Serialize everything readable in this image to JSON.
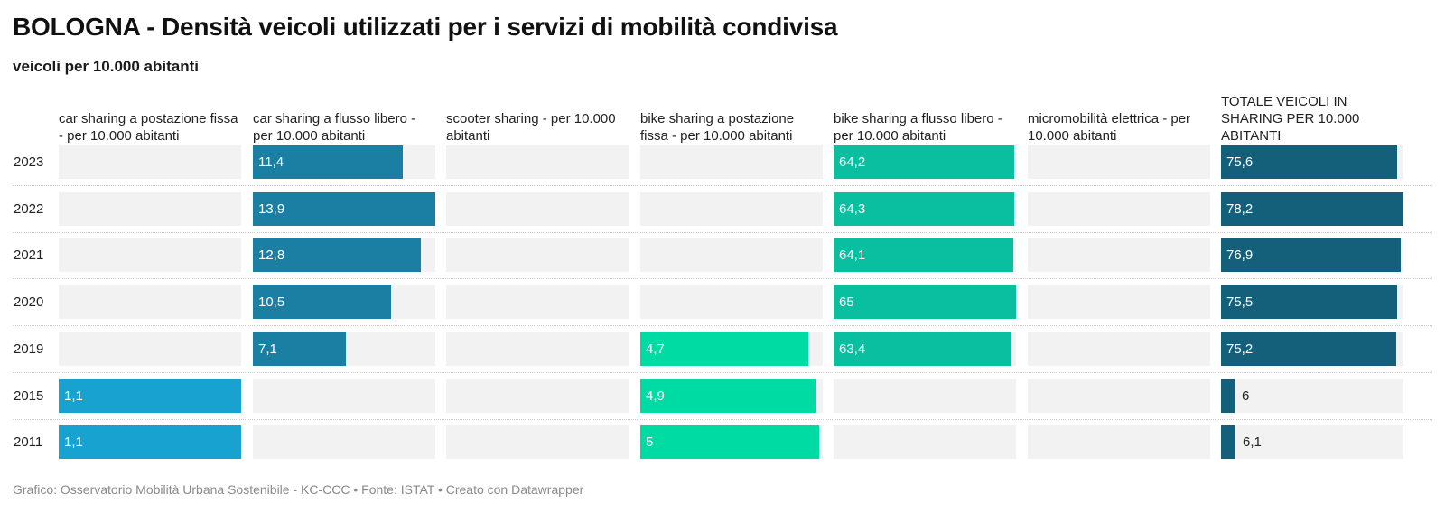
{
  "title": "BOLOGNA - Densità veicoli utilizzati per i servizi di mobilità condivisa",
  "subtitle": "veicoli per 10.000 abitanti",
  "footer": "Grafico: Osservatorio Mobilità Urbana Sostenibile - KC-CCC • Fonte: ISTAT • Creato con Datawrapper",
  "chart_data": {
    "type": "bar",
    "layout": "small-multiples-horizontal",
    "categories": [
      "2023",
      "2022",
      "2021",
      "2020",
      "2019",
      "2015",
      "2011"
    ],
    "series": [
      {
        "name": "car sharing a postazione fissa - per 10.000 abitanti",
        "color": "#17a2cf",
        "xlim": [
          0,
          1.1
        ],
        "values": [
          null,
          null,
          null,
          null,
          null,
          1.1,
          1.1
        ],
        "labels": [
          "",
          "",
          "",
          "",
          "",
          "1,1",
          "1,1"
        ]
      },
      {
        "name": "car sharing a flusso libero - per 10.000 abitanti",
        "color": "#1b7fa3",
        "xlim": [
          0,
          13.9
        ],
        "values": [
          11.4,
          13.9,
          12.8,
          10.5,
          7.1,
          null,
          null
        ],
        "labels": [
          "11,4",
          "13,9",
          "12,8",
          "10,5",
          "7,1",
          "",
          ""
        ]
      },
      {
        "name": "scooter sharing - per 10.000 abitanti",
        "color": "#1b7fa3",
        "xlim": [
          0,
          1
        ],
        "values": [
          null,
          null,
          null,
          null,
          null,
          null,
          null
        ],
        "labels": [
          "",
          "",
          "",
          "",
          "",
          "",
          ""
        ]
      },
      {
        "name": "bike sharing a postazione fissa - per 10.000 abitanti",
        "color": "#00dba3",
        "xlim": [
          0,
          5.1
        ],
        "values": [
          null,
          null,
          null,
          null,
          4.7,
          4.9,
          5
        ],
        "labels": [
          "",
          "",
          "",
          "",
          "4,7",
          "4,9",
          "5"
        ]
      },
      {
        "name": "bike sharing a flusso libero - per 10.000 abitanti",
        "color": "#0abf9f",
        "xlim": [
          0,
          65
        ],
        "values": [
          64.2,
          64.3,
          64.1,
          65,
          63.4,
          null,
          null
        ],
        "labels": [
          "64,2",
          "64,3",
          "64,1",
          "65",
          "63,4",
          "",
          ""
        ]
      },
      {
        "name": "micromobilità elettrica - per 10.000 abitanti",
        "color": "#1b7fa3",
        "xlim": [
          0,
          1
        ],
        "values": [
          null,
          null,
          null,
          null,
          null,
          null,
          null
        ],
        "labels": [
          "",
          "",
          "",
          "",
          "",
          "",
          ""
        ]
      },
      {
        "name": "TOTALE VEICOLI IN SHARING PER 10.000 ABITANTI",
        "color": "#14607a",
        "xlim": [
          0,
          78.2
        ],
        "values": [
          75.6,
          78.2,
          76.9,
          75.5,
          75.2,
          6,
          6.1
        ],
        "labels": [
          "75,6",
          "78,2",
          "76,9",
          "75,5",
          "75,2",
          "6",
          "6,1"
        ]
      }
    ]
  }
}
